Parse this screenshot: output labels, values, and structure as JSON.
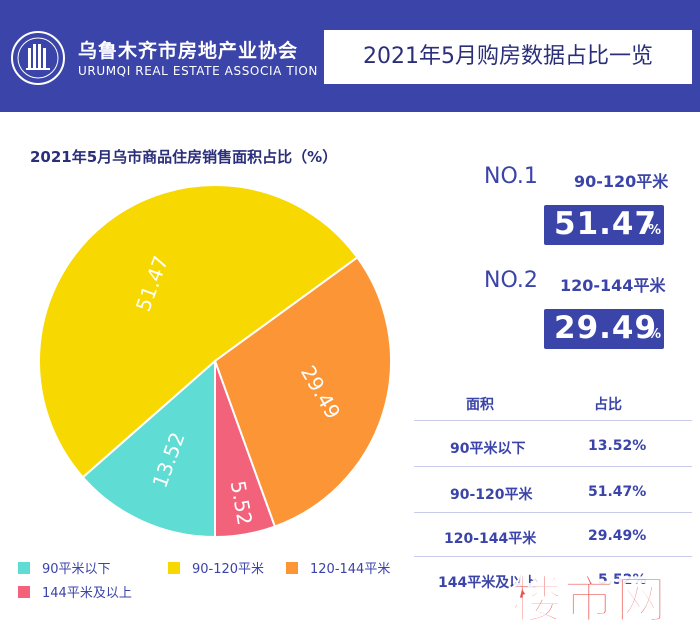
{
  "header": {
    "logo_cn": "乌鲁木齐市房地产业协会",
    "logo_en": "URUMQI REAL ESTATE ASSOCIA TION",
    "title": "2021年5月购房数据占比一览"
  },
  "chart_title": "2021年5月乌市商品住房销售面积占比（%）",
  "chart_data": {
    "type": "pie",
    "title": "2021年5月乌市商品住房销售面积占比（%）",
    "categories": [
      "90平米以下",
      "90-120平米",
      "120-144平米",
      "144平米及以上"
    ],
    "values": [
      13.52,
      51.47,
      29.49,
      5.52
    ],
    "labels": [
      "13.52",
      "51.47",
      "29.49",
      "5.52"
    ],
    "colors": [
      "#5fdcd4",
      "#f7d800",
      "#fb9535",
      "#f2627a"
    ],
    "legend_position": "bottom"
  },
  "rankings": [
    {
      "rank": "NO.1",
      "range": "90-120平米",
      "value": "51.47",
      "unit": "%"
    },
    {
      "rank": "NO.2",
      "range": "120-144平米",
      "value": "29.49",
      "unit": "%"
    }
  ],
  "table": {
    "headers": [
      "面积",
      "占比"
    ],
    "rows": [
      [
        "90平米以下",
        "13.52%"
      ],
      [
        "90-120平米",
        "51.47%"
      ],
      [
        "120-144平米",
        "29.49%"
      ],
      [
        "144平米及以上",
        "5.52%"
      ]
    ]
  },
  "watermark": "楼市网"
}
